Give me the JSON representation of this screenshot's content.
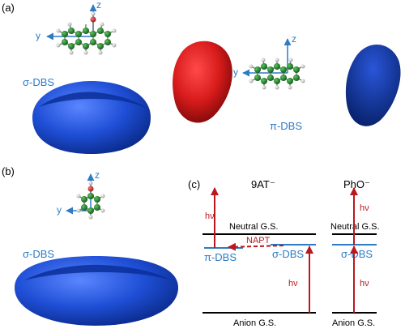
{
  "panels": {
    "a": "(a)",
    "b": "(b)",
    "c": "(c)"
  },
  "axes": {
    "y": "y",
    "z": "z"
  },
  "orbitals": {
    "sigma_a": "σ-DBS",
    "pi_a": "π-DBS",
    "sigma_b": "σ-DBS"
  },
  "diagram": {
    "col1_title": "9AT⁻",
    "col2_title": "PhO⁻",
    "neutral_1": "Neutral G.S.",
    "neutral_2": "Neutral G.S.",
    "anion_1": "Anion G.S.",
    "anion_2": "Anion G.S.",
    "pi_dbs": "π-DBS",
    "sigma_dbs_1": "σ-DBS",
    "sigma_dbs_2": "σ-DBS",
    "napt": "NAPT",
    "hv": "hν"
  },
  "colors": {
    "orbital_blue": "#1f4fd6",
    "orbital_red": "#d81b1b",
    "axis_blue": "#2e7bc4",
    "arrow_red": "#b8181e",
    "carbon": "#1e7a25",
    "hydrogen": "#d8d8d8",
    "oxygen": "#cc2222"
  }
}
